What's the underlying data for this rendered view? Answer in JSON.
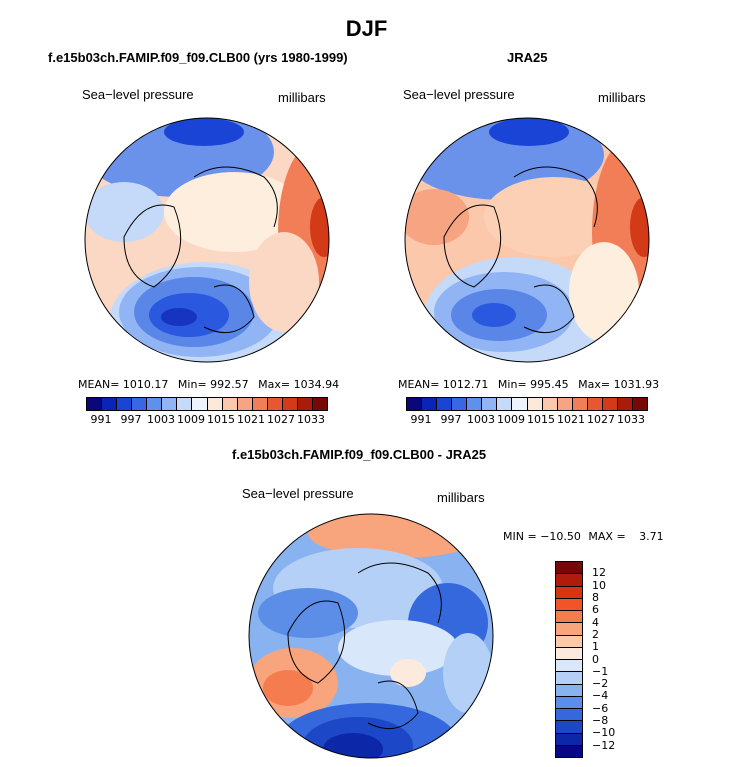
{
  "title": "DJF",
  "panels": {
    "model": {
      "title": "f.e15b03ch.FAMIP.f09_f09.CLB00 (yrs 1980-1999)",
      "variable": "Sea−level pressure",
      "units": "millibars",
      "mean_label": "MEAN=",
      "mean_value": "1010.17",
      "min_label": "Min=",
      "min_value": "992.57",
      "max_label": "Max=",
      "max_value": "1034.94"
    },
    "obs": {
      "title": "JRA25",
      "variable": "Sea−level pressure",
      "units": "millibars",
      "mean_label": "MEAN=",
      "mean_value": "1012.71",
      "min_label": "Min=",
      "min_value": "995.45",
      "max_label": "Max=",
      "max_value": "1031.93"
    },
    "diff": {
      "title": "f.e15b03ch.FAMIP.f09_f09.CLB00 - JRA25",
      "variable": "Sea−level pressure",
      "units": "millibars",
      "min_label": "MIN =",
      "min_value": "−10.50",
      "max_label": "MAX =",
      "max_value": "3.71"
    }
  },
  "colorbar_abs": {
    "colors": [
      "#08087a",
      "#0a24b8",
      "#1a44d6",
      "#3a66e6",
      "#6090ee",
      "#90b4f4",
      "#c4daf8",
      "#eef4fc",
      "#fde8dc",
      "#fbc8ac",
      "#f7a482",
      "#f27e58",
      "#e85830",
      "#d23a18",
      "#a81c0c",
      "#780808"
    ],
    "labels": [
      "991",
      "997",
      "1003",
      "1009",
      "1015",
      "1021",
      "1027",
      "1033"
    ]
  },
  "colorbar_diff": {
    "colors": [
      "#780808",
      "#b01c0c",
      "#d83412",
      "#f05428",
      "#f57c4e",
      "#f8a47c",
      "#fbcaa8",
      "#fdeade",
      "#d8e8fa",
      "#b4d0f6",
      "#88b2f0",
      "#5c8ee8",
      "#3468dc",
      "#1c48c8",
      "#0c28a8",
      "#060884"
    ],
    "labels": [
      "12",
      "10",
      "8",
      "6",
      "4",
      "2",
      "1",
      "0",
      "−1",
      "−2",
      "−4",
      "−6",
      "−8",
      "−10",
      "−12"
    ]
  }
}
